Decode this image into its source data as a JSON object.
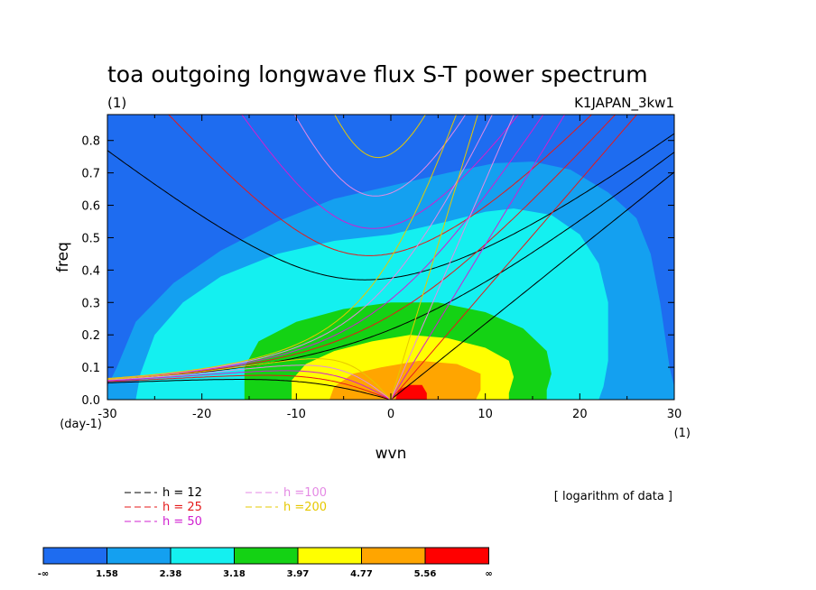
{
  "chart_data": {
    "type": "contour",
    "title": "toa outgoing longwave flux S-T power spectrum",
    "subtitle": "(1)",
    "run_label": "K1JAPAN_3kw1",
    "xlabel": "wvn",
    "ylabel": "freq",
    "x_unit": "(1)",
    "y_unit": "(day-1)",
    "xlim": [
      -30,
      30
    ],
    "ylim": [
      0,
      0.88
    ],
    "x_ticks": [
      -30,
      -20,
      -10,
      0,
      10,
      20,
      30
    ],
    "y_ticks": [
      0.0,
      0.1,
      0.2,
      0.3,
      0.4,
      0.5,
      0.6,
      0.7,
      0.8
    ],
    "x_tick_labels": [
      "-30",
      "-20",
      "-10",
      "0",
      "10",
      "20",
      "30"
    ],
    "y_tick_labels": [
      "0.0",
      "0.1",
      "0.2",
      "0.3",
      "0.4",
      "0.5",
      "0.6",
      "0.7",
      "0.8"
    ],
    "note": "[ logarithm of data ]",
    "colorbar": {
      "colors": [
        "#1e6cf0",
        "#14a0f0",
        "#14f0f0",
        "#14d214",
        "#ffff00",
        "#ffa500",
        "#ff0000"
      ],
      "labels": [
        "-∞",
        "1.58",
        "2.38",
        "3.18",
        "3.97",
        "4.77",
        "5.56",
        "∞"
      ]
    },
    "filled_levels": [
      {
        "level": 1.58,
        "color": "#14a0f0",
        "outline": [
          [
            -30,
            0
          ],
          [
            -30,
            0.04
          ],
          [
            -29,
            0.1
          ],
          [
            -27,
            0.24
          ],
          [
            -23,
            0.36
          ],
          [
            -18,
            0.46
          ],
          [
            -12,
            0.55
          ],
          [
            -6,
            0.62
          ],
          [
            0,
            0.66
          ],
          [
            6,
            0.7
          ],
          [
            11,
            0.73
          ],
          [
            15,
            0.735
          ],
          [
            19,
            0.71
          ],
          [
            23,
            0.64
          ],
          [
            26,
            0.56
          ],
          [
            27.5,
            0.45
          ],
          [
            28.5,
            0.3
          ],
          [
            29.5,
            0.1
          ],
          [
            30,
            0.04
          ],
          [
            30,
            0
          ]
        ]
      },
      {
        "level": 2.38,
        "color": "#14f0f0",
        "outline": [
          [
            -27,
            0
          ],
          [
            -26.5,
            0.08
          ],
          [
            -25,
            0.2
          ],
          [
            -22,
            0.3
          ],
          [
            -18,
            0.38
          ],
          [
            -12,
            0.45
          ],
          [
            -6,
            0.49
          ],
          [
            0,
            0.51
          ],
          [
            6,
            0.55
          ],
          [
            10,
            0.58
          ],
          [
            13,
            0.59
          ],
          [
            17,
            0.57
          ],
          [
            20,
            0.51
          ],
          [
            22,
            0.42
          ],
          [
            23,
            0.3
          ],
          [
            23,
            0.12
          ],
          [
            22.5,
            0.04
          ],
          [
            22,
            0
          ]
        ]
      },
      {
        "level": 3.18,
        "color": "#14d214",
        "outline": [
          [
            -15.5,
            0
          ],
          [
            -15.5,
            0.1
          ],
          [
            -14,
            0.18
          ],
          [
            -10,
            0.24
          ],
          [
            -5,
            0.28
          ],
          [
            0,
            0.3
          ],
          [
            5,
            0.3
          ],
          [
            10,
            0.27
          ],
          [
            14,
            0.22
          ],
          [
            16.5,
            0.15
          ],
          [
            17,
            0.08
          ],
          [
            16.5,
            0.03
          ],
          [
            16.5,
            0
          ]
        ]
      },
      {
        "level": 3.97,
        "color": "#ffff00",
        "outline": [
          [
            -10.5,
            0
          ],
          [
            -10.5,
            0.06
          ],
          [
            -9,
            0.11
          ],
          [
            -6,
            0.15
          ],
          [
            -2,
            0.18
          ],
          [
            2,
            0.2
          ],
          [
            6,
            0.19
          ],
          [
            10,
            0.16
          ],
          [
            12.5,
            0.12
          ],
          [
            13,
            0.07
          ],
          [
            12.5,
            0.02
          ],
          [
            12.5,
            0
          ]
        ]
      },
      {
        "level": 4.77,
        "color": "#ffa500",
        "outline": [
          [
            -6.5,
            0
          ],
          [
            -6,
            0.04
          ],
          [
            -4,
            0.08
          ],
          [
            -1,
            0.1
          ],
          [
            3,
            0.12
          ],
          [
            7,
            0.11
          ],
          [
            9.5,
            0.08
          ],
          [
            9.5,
            0.03
          ],
          [
            9,
            0
          ]
        ]
      },
      {
        "level": 5.56,
        "color": "#ff0000",
        "outline": [
          [
            0.5,
            0
          ],
          [
            0.8,
            0.03
          ],
          [
            2,
            0.045
          ],
          [
            3.3,
            0.045
          ],
          [
            3.8,
            0.02
          ],
          [
            3.8,
            0
          ]
        ]
      }
    ],
    "dispersion_curves": [
      {
        "name": "h = 12",
        "color": "#000000",
        "equivalent_depth": 12
      },
      {
        "name": "h = 25",
        "color": "#e41a1a",
        "equivalent_depth": 25
      },
      {
        "name": "h = 50",
        "color": "#d020d0",
        "equivalent_depth": 50
      },
      {
        "name": "h =100",
        "color": "#e48ae4",
        "equivalent_depth": 100
      },
      {
        "name": "h =200",
        "color": "#e6c800",
        "equivalent_depth": 200
      }
    ]
  }
}
